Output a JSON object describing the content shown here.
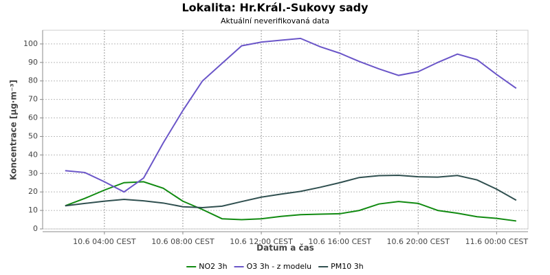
{
  "chart_data": {
    "type": "line",
    "title": "Lokalita: Hr.Král.-Sukovy sady",
    "subtitle": "Aktuální neverifikovaná data",
    "xlabel": "Datum a čas",
    "ylabel": "Koncentrace [µg·m⁻³]",
    "x": [
      2,
      3,
      4,
      5,
      6,
      7,
      8,
      9,
      10,
      11,
      12,
      13,
      14,
      15,
      16,
      17,
      18,
      19,
      20,
      21,
      22,
      23,
      24,
      25
    ],
    "series": [
      {
        "name": "NO2 3h",
        "color": "#108a10",
        "values": [
          12.5,
          16.5,
          21,
          25,
          25.5,
          22,
          15,
          10.5,
          5.5,
          5,
          5.5,
          6.8,
          7.7,
          8,
          8.2,
          10,
          13.5,
          14.8,
          13.8,
          10,
          8.5,
          6.6,
          5.7,
          4.3
        ]
      },
      {
        "name": "O3 3h - z modelu",
        "color": "#6a55c8",
        "values": [
          31.5,
          30.5,
          25.5,
          20,
          27.5,
          46.5,
          64,
          80,
          89.5,
          99,
          101,
          102,
          103,
          98.5,
          95,
          90.5,
          86.5,
          83,
          85,
          90,
          94.5,
          91.5,
          83.5,
          76
        ]
      },
      {
        "name": "PM10 3h",
        "color": "#2f4f4f",
        "values": [
          12.5,
          13.8,
          15,
          16,
          15.2,
          14,
          12,
          11.5,
          12.3,
          14.8,
          17.2,
          18.8,
          20.3,
          22.5,
          25,
          27.8,
          28.8,
          29,
          28.2,
          28,
          28.9,
          26.5,
          21.5,
          15.5
        ]
      }
    ],
    "xlim": [
      0.85,
      25.6
    ],
    "xticks": [
      {
        "value": 4,
        "label": "10.6 04:00 CEST"
      },
      {
        "value": 8,
        "label": "10.6 08:00 CEST"
      },
      {
        "value": 12,
        "label": "10.6 12:00 CEST"
      },
      {
        "value": 16,
        "label": "10.6 16:00 CEST"
      },
      {
        "value": 20,
        "label": "10.6 20:00 CEST"
      },
      {
        "value": 24,
        "label": "11.6 00:00 CEST"
      }
    ],
    "ylim": [
      0,
      107.4
    ],
    "yticks": [
      0,
      10,
      20,
      30,
      40,
      50,
      60,
      70,
      80,
      90,
      100
    ],
    "grid": true,
    "legend": "bottom"
  }
}
